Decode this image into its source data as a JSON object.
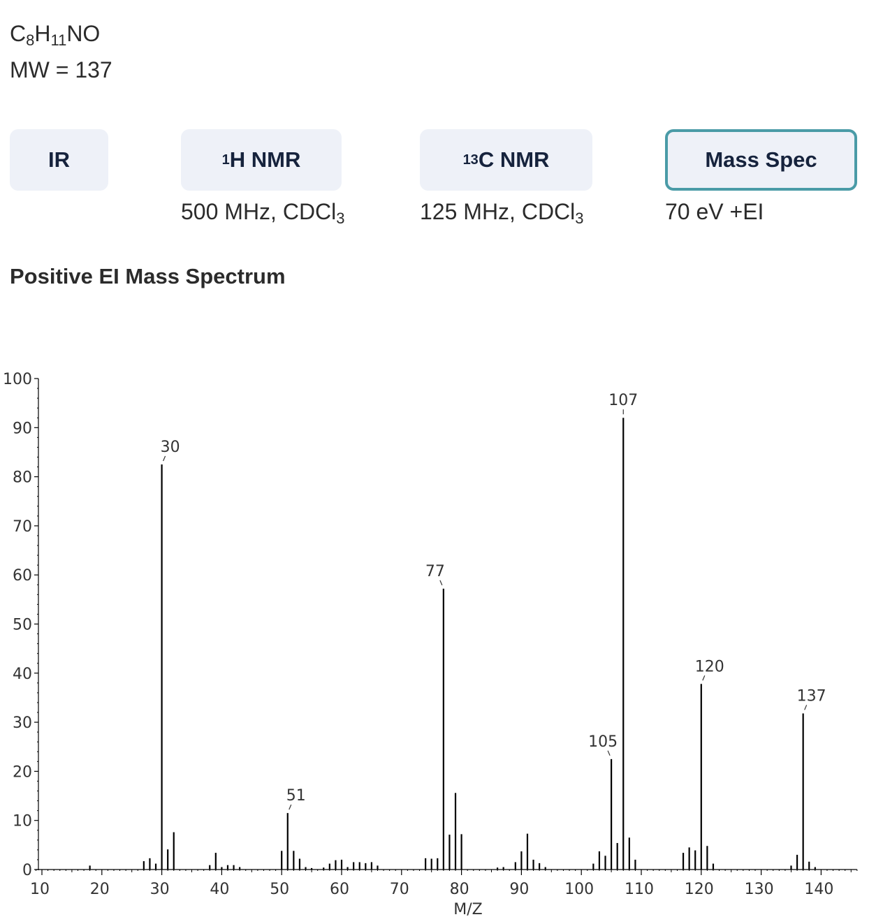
{
  "compound": {
    "formula_parts": [
      "C",
      "8",
      "H",
      "11",
      "NO"
    ],
    "mw_label": "MW = 137"
  },
  "tabs": [
    {
      "sup": "",
      "label": "IR",
      "sub_text": "",
      "sub_index": "",
      "active": false
    },
    {
      "sup": "1",
      "label": "H NMR",
      "sub_text": "500 MHz, CDCl",
      "sub_index": "3",
      "active": false
    },
    {
      "sup": "13",
      "label": "C NMR",
      "sub_text": "125 MHz, CDCl",
      "sub_index": "3",
      "active": false
    },
    {
      "sup": "",
      "label": "Mass Spec",
      "sub_text": "70 eV +EI",
      "sub_index": "",
      "active": true
    }
  ],
  "section_title": "Positive EI Mass Spectrum",
  "colors": {
    "accent": "#4a9ba7",
    "tab_bg": "#eef1f8",
    "tab_text": "#16233d",
    "peak": "#000000"
  },
  "chart_data": {
    "type": "bar",
    "xlabel": "M/Z",
    "ylabel": "",
    "xlim": [
      9,
      146
    ],
    "ylim": [
      0,
      100
    ],
    "x_ticks": [
      10,
      20,
      30,
      40,
      50,
      60,
      70,
      80,
      90,
      100,
      110,
      120,
      130,
      140
    ],
    "y_ticks": [
      0,
      10,
      20,
      30,
      40,
      50,
      60,
      70,
      80,
      90,
      100
    ],
    "peaks": [
      [
        18,
        0.8
      ],
      [
        27,
        1.7
      ],
      [
        28,
        2.3
      ],
      [
        29,
        1.2
      ],
      [
        30,
        82.5
      ],
      [
        31,
        4.1
      ],
      [
        32,
        7.6
      ],
      [
        38,
        0.9
      ],
      [
        39,
        3.4
      ],
      [
        40,
        0.5
      ],
      [
        41,
        0.9
      ],
      [
        42,
        0.9
      ],
      [
        43,
        0.5
      ],
      [
        50,
        3.8
      ],
      [
        51,
        11.5
      ],
      [
        52,
        3.8
      ],
      [
        53,
        2.2
      ],
      [
        54,
        0.5
      ],
      [
        55,
        0.3
      ],
      [
        57,
        0.4
      ],
      [
        58,
        1.2
      ],
      [
        59,
        1.9
      ],
      [
        60,
        2.0
      ],
      [
        61,
        0.5
      ],
      [
        62,
        1.5
      ],
      [
        63,
        1.5
      ],
      [
        64,
        1.3
      ],
      [
        65,
        1.5
      ],
      [
        66,
        0.8
      ],
      [
        74,
        2.3
      ],
      [
        75,
        2.2
      ],
      [
        76,
        2.3
      ],
      [
        77,
        57.2
      ],
      [
        78,
        7.1
      ],
      [
        79,
        15.6
      ],
      [
        80,
        7.2
      ],
      [
        86,
        0.4
      ],
      [
        87,
        0.5
      ],
      [
        89,
        1.5
      ],
      [
        90,
        3.7
      ],
      [
        91,
        7.3
      ],
      [
        92,
        2.0
      ],
      [
        93,
        1.3
      ],
      [
        94,
        0.5
      ],
      [
        102,
        1.2
      ],
      [
        103,
        3.7
      ],
      [
        104,
        2.8
      ],
      [
        105,
        22.5
      ],
      [
        106,
        5.4
      ],
      [
        107,
        92.0
      ],
      [
        108,
        6.5
      ],
      [
        109,
        2.0
      ],
      [
        117,
        3.4
      ],
      [
        118,
        4.5
      ],
      [
        119,
        3.9
      ],
      [
        120,
        37.8
      ],
      [
        121,
        4.8
      ],
      [
        122,
        1.2
      ],
      [
        135,
        0.8
      ],
      [
        136,
        3.0
      ],
      [
        137,
        31.8
      ],
      [
        138,
        1.6
      ],
      [
        139,
        0.5
      ]
    ],
    "labels": [
      {
        "x": 30,
        "text": "30"
      },
      {
        "x": 51,
        "text": "51"
      },
      {
        "x": 77,
        "text": "77"
      },
      {
        "x": 105,
        "text": "105"
      },
      {
        "x": 107,
        "text": "107"
      },
      {
        "x": 120,
        "text": "120"
      },
      {
        "x": 137,
        "text": "137"
      }
    ]
  }
}
